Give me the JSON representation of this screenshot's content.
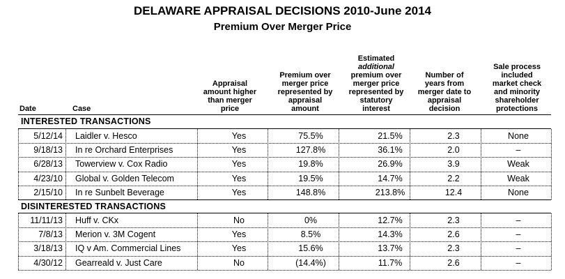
{
  "title": "DELAWARE APPRAISAL DECISIONS 2010-June 2014",
  "subtitle": "Premium Over Merger Price",
  "headers": {
    "date": "Date",
    "case": "Case",
    "appraisal": [
      "Appraisal",
      "amount higher",
      "than merger",
      "price"
    ],
    "premium": [
      "Premium over",
      "merger price",
      "represented by",
      "appraisal",
      "amount"
    ],
    "estimated": [
      "Estimated",
      "additional",
      "premium over",
      "merger price",
      "represented by",
      "statutory",
      "interest"
    ],
    "years": [
      "Number of",
      "years from",
      "merger date to",
      "appraisal",
      "decision"
    ],
    "sale": [
      "Sale process",
      "included",
      "market check",
      "and minority",
      "shareholder",
      "protections"
    ]
  },
  "sections": [
    {
      "label": "INTERESTED TRANSACTIONS",
      "rows": [
        {
          "date": "5/12/14",
          "case": "Laidler v. Hesco",
          "appraisal": "Yes",
          "premium": "75.5%",
          "estimated": "21.5%",
          "years": "2.3",
          "sale": "None"
        },
        {
          "date": "9/18/13",
          "case": "In re Orchard Enterprises",
          "appraisal": "Yes",
          "premium": "127.8%",
          "estimated": "36.1%",
          "years": "2.0",
          "sale": "–"
        },
        {
          "date": "6/28/13",
          "case": "Towerview v. Cox Radio",
          "appraisal": "Yes",
          "premium": "19.8%",
          "estimated": "26.9%",
          "years": "3.9",
          "sale": "Weak"
        },
        {
          "date": "4/23/10",
          "case": "Global v. Golden Telecom",
          "appraisal": "Yes",
          "premium": "19.5%",
          "estimated": "14.7%",
          "years": "2.2",
          "sale": "Weak"
        },
        {
          "date": "2/15/10",
          "case": "In re Sunbelt Beverage",
          "appraisal": "Yes",
          "premium": "148.8%",
          "estimated": "213.8%",
          "years": "12.4",
          "sale": "None"
        }
      ]
    },
    {
      "label": "DISINTERESTED TRANSACTIONS",
      "rows": [
        {
          "date": "11/11/13",
          "case": "Huff v. CKx",
          "appraisal": "No",
          "premium": "0%",
          "estimated": "12.7%",
          "years": "2.3",
          "sale": "–"
        },
        {
          "date": "7/8/13",
          "case": "Merion v. 3M Cogent",
          "appraisal": "Yes",
          "premium": "8.5%",
          "estimated": "14.3%",
          "years": "2.6",
          "sale": "–"
        },
        {
          "date": "3/18/13",
          "case": "IQ v Am. Commercial Lines",
          "appraisal": "Yes",
          "premium": "15.6%",
          "estimated": "13.7%",
          "years": "2.3",
          "sale": "–"
        },
        {
          "date": "4/30/12",
          "case": "Gearreald v. Just Care",
          "appraisal": "No",
          "premium": "(14.4%)",
          "estimated": "11.7%",
          "years": "2.6",
          "sale": "–"
        }
      ]
    }
  ]
}
